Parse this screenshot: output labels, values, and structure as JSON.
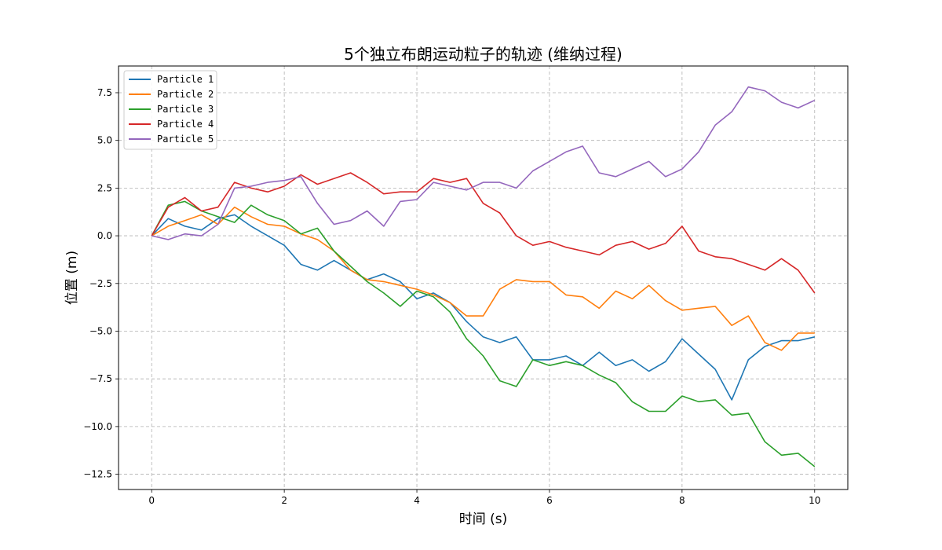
{
  "chart_data": {
    "type": "line",
    "title": "5个独立布朗运动粒子的轨迹 (维纳过程)",
    "xlabel": "时间 (s)",
    "ylabel": "位置 (m)",
    "xlim": [
      -0.5,
      10.5
    ],
    "ylim": [
      -13.3,
      8.9
    ],
    "xticks": [
      0,
      2,
      4,
      6,
      8,
      10
    ],
    "xtick_labels": [
      "0",
      "2",
      "4",
      "6",
      "8",
      "10"
    ],
    "yticks": [
      -12.5,
      -10.0,
      -7.5,
      -5.0,
      -2.5,
      0.0,
      2.5,
      5.0,
      7.5
    ],
    "ytick_labels": [
      "−12.5",
      "−10.0",
      "−7.5",
      "−5.0",
      "−2.5",
      "0.0",
      "2.5",
      "5.0",
      "7.5"
    ],
    "grid": true,
    "legend_position": "top-left",
    "series": [
      {
        "name": "Particle 1",
        "color": "#1f77b4",
        "x": [
          0,
          0.25,
          0.5,
          0.75,
          1.0,
          1.25,
          1.5,
          1.75,
          2.0,
          2.25,
          2.5,
          2.75,
          3.0,
          3.25,
          3.5,
          3.75,
          4.0,
          4.25,
          4.5,
          4.75,
          5.0,
          5.25,
          5.5,
          5.75,
          6.0,
          6.25,
          6.5,
          6.75,
          7.0,
          7.25,
          7.5,
          7.75,
          8.0,
          8.25,
          8.5,
          8.75,
          9.0,
          9.25,
          9.5,
          9.75,
          10.0
        ],
        "y": [
          0.0,
          0.9,
          0.5,
          0.3,
          0.9,
          1.1,
          0.5,
          0.0,
          -0.5,
          -1.5,
          -1.8,
          -1.3,
          -1.8,
          -2.3,
          -2.0,
          -2.4,
          -3.3,
          -3.0,
          -3.5,
          -4.5,
          -5.3,
          -5.6,
          -5.3,
          -6.5,
          -6.5,
          -6.3,
          -6.8,
          -6.1,
          -6.8,
          -6.5,
          -7.1,
          -6.6,
          -5.4,
          -6.2,
          -7.0,
          -8.6,
          -6.5,
          -5.8,
          -5.5,
          -5.5,
          -5.3
        ]
      },
      {
        "name": "Particle 2",
        "color": "#ff7f0e",
        "x": [
          0,
          0.25,
          0.5,
          0.75,
          1.0,
          1.25,
          1.5,
          1.75,
          2.0,
          2.25,
          2.5,
          2.75,
          3.0,
          3.25,
          3.5,
          3.75,
          4.0,
          4.25,
          4.5,
          4.75,
          5.0,
          5.25,
          5.5,
          5.75,
          6.0,
          6.25,
          6.5,
          6.75,
          7.0,
          7.25,
          7.5,
          7.75,
          8.0,
          8.25,
          8.5,
          8.75,
          9.0,
          9.25,
          9.5,
          9.75,
          10.0
        ],
        "y": [
          0.0,
          0.5,
          0.8,
          1.1,
          0.6,
          1.5,
          1.0,
          0.6,
          0.5,
          0.1,
          -0.2,
          -0.8,
          -1.8,
          -2.3,
          -2.4,
          -2.6,
          -2.8,
          -3.1,
          -3.5,
          -4.2,
          -4.2,
          -2.8,
          -2.3,
          -2.4,
          -2.4,
          -3.1,
          -3.2,
          -3.8,
          -2.9,
          -3.3,
          -2.6,
          -3.4,
          -3.9,
          -3.8,
          -3.7,
          -4.7,
          -4.2,
          -5.6,
          -6.0,
          -5.1,
          -5.1
        ]
      },
      {
        "name": "Particle 3",
        "color": "#2ca02c",
        "x": [
          0,
          0.25,
          0.5,
          0.75,
          1.0,
          1.25,
          1.5,
          1.75,
          2.0,
          2.25,
          2.5,
          2.75,
          3.0,
          3.25,
          3.5,
          3.75,
          4.0,
          4.25,
          4.5,
          4.75,
          5.0,
          5.25,
          5.5,
          5.75,
          6.0,
          6.25,
          6.5,
          6.75,
          7.0,
          7.25,
          7.5,
          7.75,
          8.0,
          8.25,
          8.5,
          8.75,
          9.0,
          9.25,
          9.5,
          9.75,
          10.0
        ],
        "y": [
          0.0,
          1.6,
          1.8,
          1.3,
          1.0,
          0.7,
          1.6,
          1.1,
          0.8,
          0.1,
          0.4,
          -0.8,
          -1.6,
          -2.4,
          -3.0,
          -3.7,
          -2.9,
          -3.2,
          -4.0,
          -5.4,
          -6.3,
          -7.6,
          -7.9,
          -6.5,
          -6.8,
          -6.6,
          -6.8,
          -7.3,
          -7.7,
          -8.7,
          -9.2,
          -9.2,
          -8.4,
          -8.7,
          -8.6,
          -9.4,
          -9.3,
          -10.8,
          -11.5,
          -11.4,
          -12.1
        ]
      },
      {
        "name": "Particle 4",
        "color": "#d62728",
        "x": [
          0,
          0.25,
          0.5,
          0.75,
          1.0,
          1.25,
          1.5,
          1.75,
          2.0,
          2.25,
          2.5,
          2.75,
          3.0,
          3.25,
          3.5,
          3.75,
          4.0,
          4.25,
          4.5,
          4.75,
          5.0,
          5.25,
          5.5,
          5.75,
          6.0,
          6.25,
          6.5,
          6.75,
          7.0,
          7.25,
          7.5,
          7.75,
          8.0,
          8.25,
          8.5,
          8.75,
          9.0,
          9.25,
          9.5,
          9.75,
          10.0
        ],
        "y": [
          0.0,
          1.5,
          2.0,
          1.3,
          1.5,
          2.8,
          2.5,
          2.3,
          2.6,
          3.2,
          2.7,
          3.0,
          3.3,
          2.8,
          2.2,
          2.3,
          2.3,
          3.0,
          2.8,
          3.0,
          1.7,
          1.2,
          0.0,
          -0.5,
          -0.3,
          -0.6,
          -0.8,
          -1.0,
          -0.5,
          -0.3,
          -0.7,
          -0.4,
          0.5,
          -0.8,
          -1.1,
          -1.2,
          -1.5,
          -1.8,
          -1.2,
          -1.8,
          -3.0
        ]
      },
      {
        "name": "Particle 5",
        "color": "#9467bd",
        "x": [
          0,
          0.25,
          0.5,
          0.75,
          1.0,
          1.25,
          1.5,
          1.75,
          2.0,
          2.25,
          2.5,
          2.75,
          3.0,
          3.25,
          3.5,
          3.75,
          4.0,
          4.25,
          4.5,
          4.75,
          5.0,
          5.25,
          5.5,
          5.75,
          6.0,
          6.25,
          6.5,
          6.75,
          7.0,
          7.25,
          7.5,
          7.75,
          8.0,
          8.25,
          8.5,
          8.75,
          9.0,
          9.25,
          9.5,
          9.75,
          10.0
        ],
        "y": [
          0.0,
          -0.2,
          0.1,
          0.0,
          0.6,
          2.5,
          2.6,
          2.8,
          2.9,
          3.1,
          1.7,
          0.6,
          0.8,
          1.3,
          0.5,
          1.8,
          1.9,
          2.8,
          2.6,
          2.4,
          2.8,
          2.8,
          2.5,
          3.4,
          3.9,
          4.4,
          4.7,
          3.3,
          3.1,
          3.5,
          3.9,
          3.1,
          3.5,
          4.4,
          5.8,
          6.5,
          7.8,
          7.6,
          7.0,
          6.7,
          7.1
        ]
      }
    ]
  }
}
